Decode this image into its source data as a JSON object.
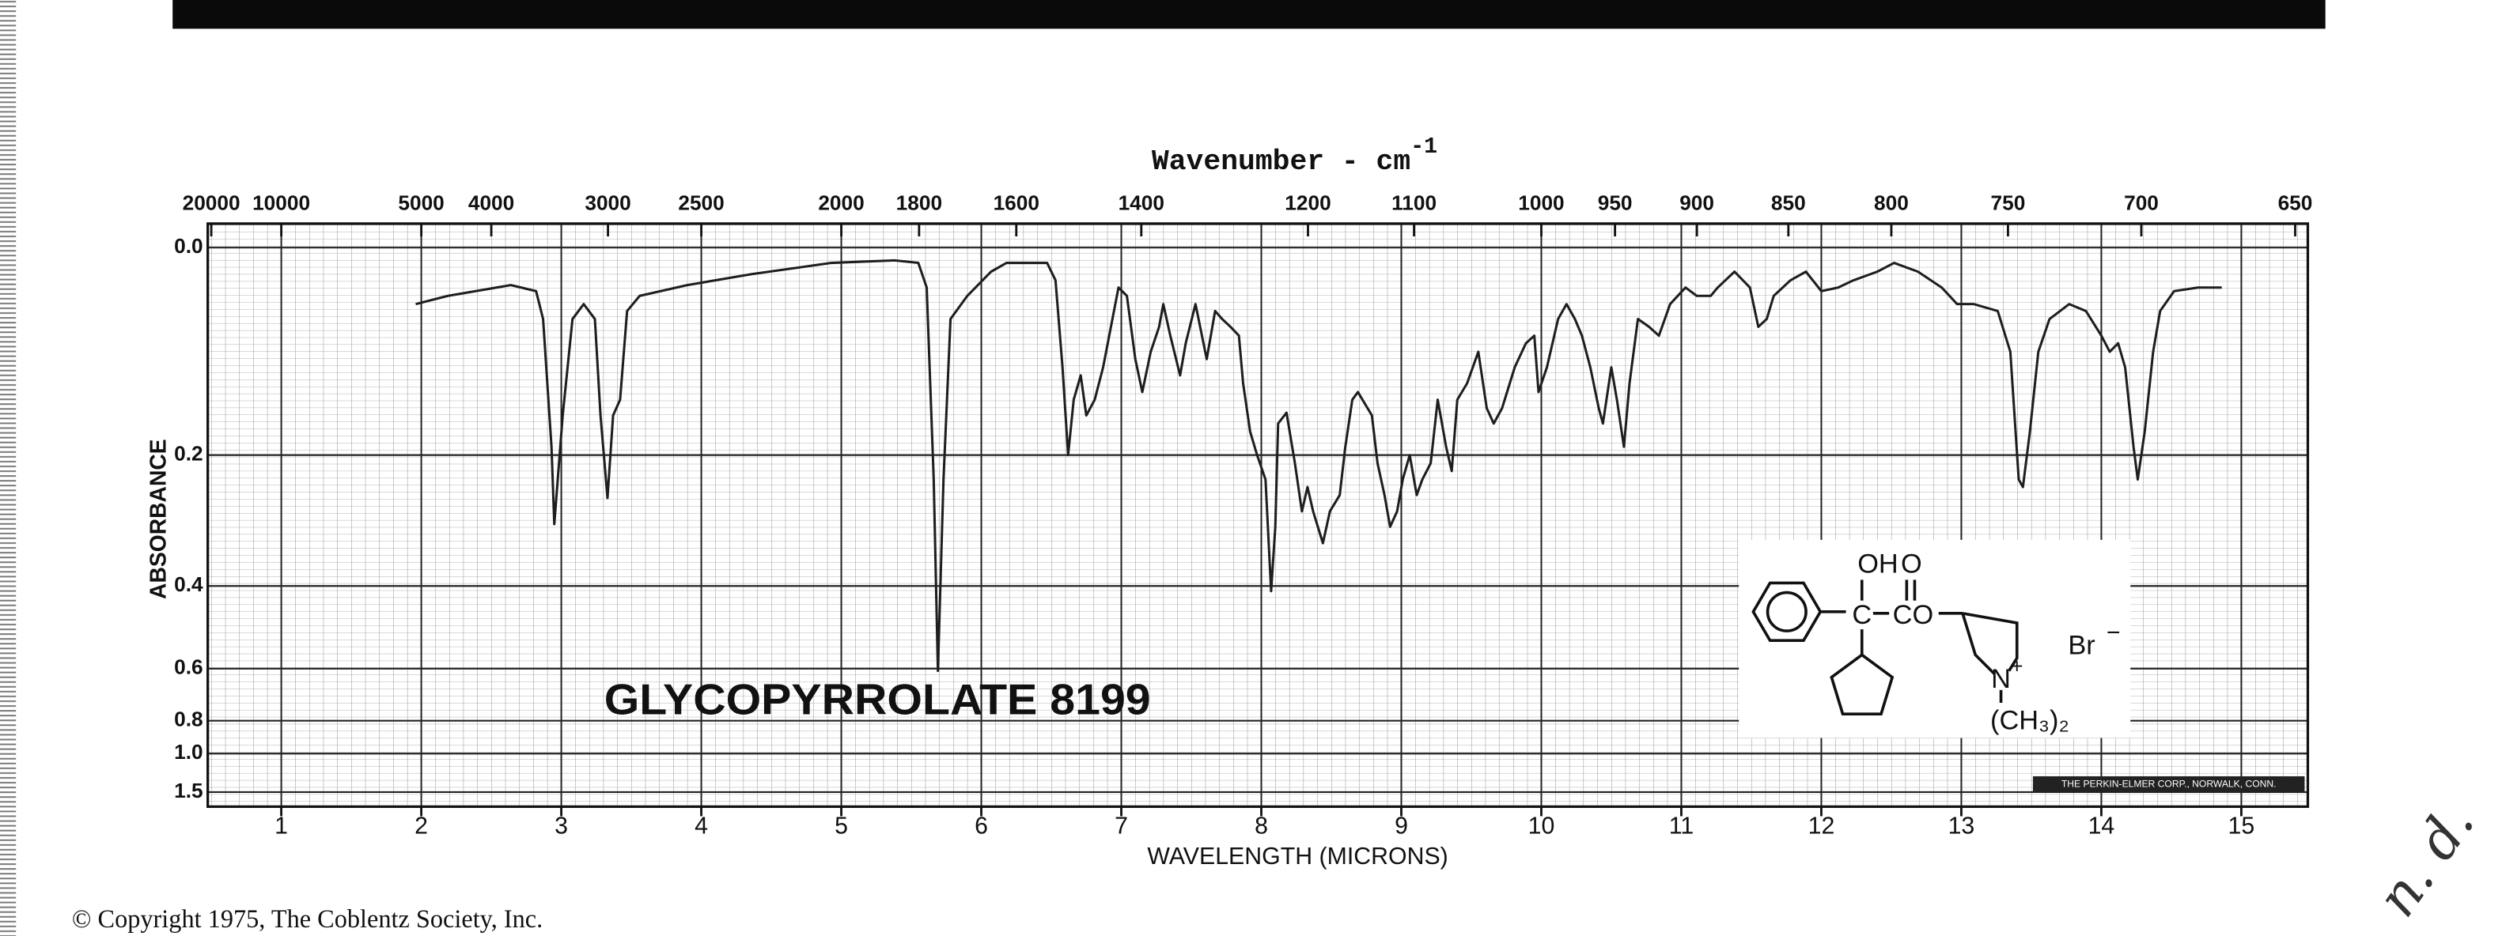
{
  "chart_data": {
    "type": "line",
    "x2label": "Wavenumber - cm",
    "x2label_sup": "-1",
    "ylabel": "ABSORBANCE",
    "xlabel": "WAVELENGTH (MICRONS)",
    "title": "GLYCOPYRROLATE 8199",
    "yscale": "transmittance",
    "grid": true,
    "color": "#1e1e1e",
    "xlim": [
      0.5,
      15.5
    ],
    "ylim": [
      0,
      2
    ],
    "xticks": [
      1,
      2,
      3,
      4,
      5,
      6,
      7,
      8,
      9,
      10,
      11,
      12,
      13,
      14,
      15
    ],
    "yticks": [
      {
        "value": 0,
        "label": "0.0"
      },
      0.2,
      0.4,
      0.6,
      0.8,
      {
        "value": 1,
        "label": "1.0"
      },
      1.5
    ],
    "x2ticks": [
      20000,
      10000,
      5000,
      4000,
      3000,
      2500,
      2000,
      1800,
      1600,
      1400,
      1200,
      1100,
      1000,
      950,
      900,
      850,
      800,
      750,
      700,
      650
    ],
    "x": [
      1.96,
      2.19,
      2.64,
      2.82,
      2.87,
      2.93,
      2.95,
      3.01,
      3.08,
      3.16,
      3.24,
      3.28,
      3.33,
      3.37,
      3.42,
      3.47,
      3.56,
      3.9,
      4.36,
      4.93,
      5.38,
      5.55,
      5.61,
      5.66,
      5.69,
      5.73,
      5.78,
      5.9,
      6.07,
      6.18,
      6.47,
      6.53,
      6.58,
      6.62,
      6.66,
      6.71,
      6.75,
      6.81,
      6.87,
      6.98,
      7.04,
      7.1,
      7.15,
      7.21,
      7.27,
      7.3,
      7.35,
      7.42,
      7.46,
      7.53,
      7.61,
      7.67,
      7.72,
      7.78,
      7.84,
      7.87,
      7.92,
      7.97,
      8.03,
      8.07,
      8.1,
      8.12,
      8.18,
      8.24,
      8.29,
      8.33,
      8.37,
      8.44,
      8.49,
      8.56,
      8.6,
      8.65,
      8.69,
      8.79,
      8.83,
      8.88,
      8.92,
      8.97,
      9.01,
      9.06,
      9.11,
      9.15,
      9.21,
      9.26,
      9.32,
      9.36,
      9.4,
      9.47,
      9.55,
      9.61,
      9.66,
      9.72,
      9.81,
      9.89,
      9.95,
      9.98,
      10.04,
      10.12,
      10.18,
      10.24,
      10.29,
      10.35,
      10.41,
      10.44,
      10.5,
      10.54,
      10.59,
      10.63,
      10.69,
      10.77,
      10.84,
      10.92,
      11.03,
      11.11,
      11.21,
      11.26,
      11.38,
      11.49,
      11.55,
      11.61,
      11.66,
      11.78,
      11.89,
      12.0,
      12.12,
      12.23,
      12.4,
      12.52,
      12.69,
      12.86,
      12.97,
      13.09,
      13.26,
      13.35,
      13.41,
      13.44,
      13.49,
      13.55,
      13.63,
      13.77,
      13.89,
      14.0,
      14.06,
      14.12,
      14.17,
      14.23,
      14.26,
      14.31,
      14.37,
      14.42,
      14.52,
      14.69,
      14.86
    ],
    "values": [
      0.046,
      0.039,
      0.03,
      0.035,
      0.059,
      0.19,
      0.294,
      0.154,
      0.059,
      0.046,
      0.059,
      0.154,
      0.256,
      0.154,
      0.137,
      0.052,
      0.039,
      0.03,
      0.021,
      0.012,
      0.01,
      0.012,
      0.032,
      0.231,
      0.607,
      0.231,
      0.059,
      0.039,
      0.019,
      0.012,
      0.012,
      0.026,
      0.104,
      0.2,
      0.137,
      0.112,
      0.154,
      0.137,
      0.104,
      0.032,
      0.039,
      0.096,
      0.129,
      0.089,
      0.066,
      0.046,
      0.074,
      0.112,
      0.081,
      0.046,
      0.096,
      0.052,
      0.059,
      0.066,
      0.074,
      0.12,
      0.172,
      0.2,
      0.231,
      0.41,
      0.298,
      0.163,
      0.151,
      0.21,
      0.275,
      0.241,
      0.275,
      0.324,
      0.275,
      0.252,
      0.19,
      0.137,
      0.129,
      0.154,
      0.21,
      0.252,
      0.298,
      0.275,
      0.231,
      0.2,
      0.252,
      0.231,
      0.21,
      0.137,
      0.19,
      0.22,
      0.137,
      0.12,
      0.089,
      0.146,
      0.163,
      0.146,
      0.104,
      0.081,
      0.074,
      0.129,
      0.104,
      0.059,
      0.046,
      0.059,
      0.074,
      0.104,
      0.146,
      0.163,
      0.104,
      0.137,
      0.19,
      0.12,
      0.059,
      0.066,
      0.074,
      0.046,
      0.032,
      0.039,
      0.039,
      0.032,
      0.019,
      0.032,
      0.066,
      0.059,
      0.039,
      0.026,
      0.019,
      0.035,
      0.032,
      0.026,
      0.019,
      0.012,
      0.019,
      0.032,
      0.046,
      0.046,
      0.052,
      0.089,
      0.231,
      0.241,
      0.172,
      0.089,
      0.059,
      0.046,
      0.052,
      0.074,
      0.089,
      0.081,
      0.104,
      0.19,
      0.231,
      0.172,
      0.089,
      0.052,
      0.035,
      0.032,
      0.032
    ]
  },
  "structure": {
    "labels": [
      "OH",
      "O",
      "C",
      "CO",
      "N",
      "+",
      "Br",
      "−",
      "(CH₃)₂"
    ]
  },
  "footer": {
    "copyright": "© Copyright 1975, The Coblentz Society, Inc.",
    "manufacturer": "THE PERKIN-ELMER CORP., NORWALK, CONN.",
    "annotation": "n. d."
  }
}
